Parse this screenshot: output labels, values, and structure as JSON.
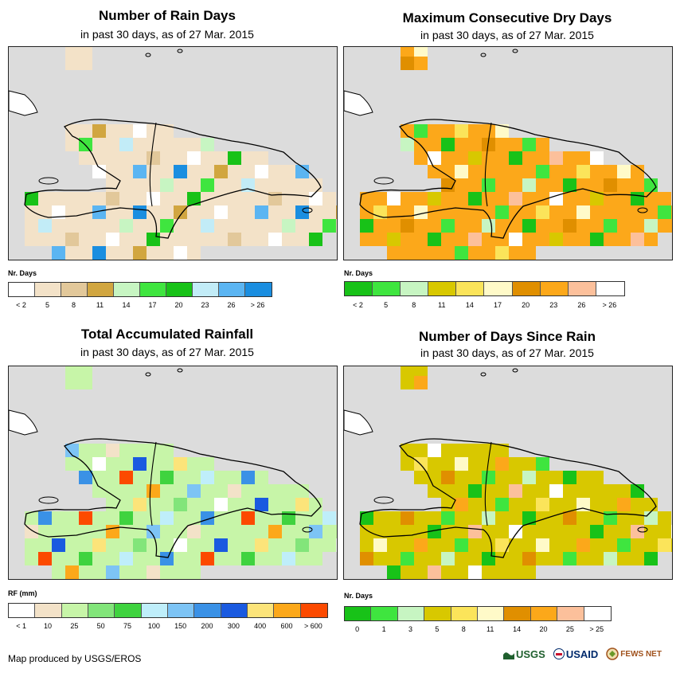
{
  "panels": [
    {
      "title": "Number of Rain Days",
      "subtitle": "in past 30 days, as of 27 Mar. 2015",
      "legend_title": "Nr. Days",
      "legend_colors": [
        "#ffffff",
        "#f3e2c8",
        "#e2c89a",
        "#d1a640",
        "#c7f5c2",
        "#3fe53f",
        "#18c218",
        "#c2ecf7",
        "#5bb5f2",
        "#1a8ee0"
      ],
      "legend_labels": [
        "< 2",
        "5",
        "8",
        "11",
        "14",
        "17",
        "20",
        "23",
        "26",
        "> 26"
      ],
      "base_color": "#f3e2c8"
    },
    {
      "title": "Maximum Consecutive Dry Days",
      "subtitle": "in past 30 days, as of 27 Mar. 2015",
      "legend_title": "Nr. Days",
      "legend_colors": [
        "#18c218",
        "#3fe53f",
        "#c7f5c2",
        "#d8c800",
        "#fbe45a",
        "#fffac8",
        "#e08f00",
        "#fca81a",
        "#fcc09b",
        "#ffffff"
      ],
      "legend_labels": [
        "< 2",
        "5",
        "8",
        "11",
        "14",
        "17",
        "20",
        "23",
        "26",
        "> 26"
      ],
      "base_color": "#fca81a"
    },
    {
      "title": "Total Accumulated Rainfall",
      "subtitle": "in past 30 days, as of 27 Mar. 2015",
      "legend_title": "RF (mm)",
      "legend_colors": [
        "#ffffff",
        "#f3e2c8",
        "#c7f5a8",
        "#82e57a",
        "#3fd33f",
        "#bfeefa",
        "#7dc4f5",
        "#3a91e6",
        "#1a5ae0",
        "#fce47a",
        "#fca81a",
        "#fc4a00"
      ],
      "legend_labels": [
        "< 1",
        "10",
        "25",
        "50",
        "75",
        "100",
        "150",
        "200",
        "300",
        "400",
        "600",
        "> 600"
      ],
      "base_color": "#c7f5a8"
    },
    {
      "title": "Number of Days Since Rain",
      "subtitle": "in past 30 days, as of 27 Mar. 2015",
      "legend_title": "Nr. Days",
      "legend_colors": [
        "#18c218",
        "#3fe53f",
        "#c7f5c2",
        "#d8c800",
        "#fbe45a",
        "#fffac8",
        "#e08f00",
        "#fca81a",
        "#fcc09b",
        "#ffffff"
      ],
      "legend_labels": [
        "0",
        "1",
        "3",
        "5",
        "8",
        "11",
        "14",
        "20",
        "25",
        "> 25"
      ],
      "base_color": "#d8c800"
    }
  ],
  "footer": {
    "credit": "Map produced by USGS/EROS",
    "logos": [
      "USGS",
      "USAID",
      "FEWS NET"
    ]
  }
}
